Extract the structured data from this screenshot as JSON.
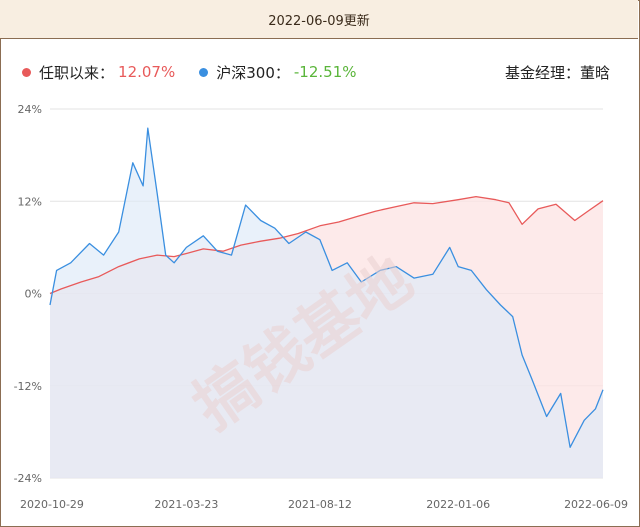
{
  "header": {
    "update_text": "2022-06-09更新"
  },
  "manager": {
    "label": "基金经理：",
    "name": "董晗"
  },
  "watermark": "搞钱基地",
  "colors": {
    "fund": "#e85a5a",
    "index": "#3a8fe0",
    "index_value": "#5ab53a",
    "fund_fill": "#fce3e3",
    "index_fill": "#dde9f8"
  },
  "chart_data": {
    "type": "area",
    "title": "",
    "xlabel": "",
    "ylabel": "",
    "ylim": [
      -24,
      24
    ],
    "y_ticks": [
      24,
      12,
      0,
      -12,
      -24
    ],
    "y_tick_labels": [
      "24%",
      "12%",
      "0%",
      "-12%",
      "-24%"
    ],
    "x_tick_labels": [
      "2020-10-29",
      "2021-03-23",
      "2021-08-12",
      "2022-01-06",
      "2022-06-09"
    ],
    "grid": true,
    "legend_position": "top-left",
    "series": [
      {
        "name": "任职以来",
        "latest_label": "12.07%",
        "x": [
          "2020-10-29",
          "2020-11-10",
          "2020-12-01",
          "2020-12-20",
          "2021-01-10",
          "2021-02-01",
          "2021-02-20",
          "2021-03-10",
          "2021-03-23",
          "2021-04-10",
          "2021-05-01",
          "2021-05-20",
          "2021-06-10",
          "2021-06-30",
          "2021-07-20",
          "2021-08-12",
          "2021-09-01",
          "2021-09-20",
          "2021-10-10",
          "2021-11-01",
          "2021-11-20",
          "2021-12-10",
          "2022-01-06",
          "2022-01-25",
          "2022-02-15",
          "2022-03-01",
          "2022-03-15",
          "2022-04-01",
          "2022-04-20",
          "2022-05-10",
          "2022-05-25",
          "2022-06-09"
        ],
        "values": [
          0,
          0.6,
          1.5,
          2.2,
          3.5,
          4.5,
          5.0,
          4.8,
          5.2,
          5.8,
          5.5,
          6.3,
          6.8,
          7.2,
          7.8,
          8.8,
          9.3,
          10.0,
          10.7,
          11.3,
          11.8,
          11.7,
          12.2,
          12.6,
          12.2,
          11.8,
          9.0,
          11.0,
          11.6,
          9.5,
          10.8,
          12.07
        ]
      },
      {
        "name": "沪深300",
        "latest_label": "-12.51%",
        "x": [
          "2020-10-29",
          "2020-11-05",
          "2020-11-20",
          "2020-12-10",
          "2020-12-25",
          "2021-01-10",
          "2021-01-25",
          "2021-02-05",
          "2021-02-10",
          "2021-02-20",
          "2021-03-01",
          "2021-03-10",
          "2021-03-23",
          "2021-04-10",
          "2021-04-25",
          "2021-05-10",
          "2021-05-25",
          "2021-06-10",
          "2021-06-25",
          "2021-07-10",
          "2021-07-28",
          "2021-08-12",
          "2021-08-25",
          "2021-09-10",
          "2021-09-25",
          "2021-10-15",
          "2021-11-01",
          "2021-11-20",
          "2021-12-10",
          "2021-12-28",
          "2022-01-06",
          "2022-01-20",
          "2022-02-05",
          "2022-02-20",
          "2022-03-05",
          "2022-03-15",
          "2022-03-25",
          "2022-04-10",
          "2022-04-25",
          "2022-05-05",
          "2022-05-20",
          "2022-06-01",
          "2022-06-09"
        ],
        "values": [
          -1.5,
          3.0,
          4.0,
          6.5,
          5.0,
          8.0,
          17.0,
          14.0,
          21.5,
          13.0,
          5.0,
          4.0,
          6.0,
          7.5,
          5.5,
          5.0,
          11.5,
          9.5,
          8.5,
          6.5,
          8.0,
          7.0,
          3.0,
          4.0,
          1.5,
          3.0,
          3.5,
          2.0,
          2.5,
          6.0,
          3.5,
          3.0,
          0.5,
          -1.5,
          -3.0,
          -8.0,
          -11.0,
          -16.0,
          -13.0,
          -20.0,
          -16.5,
          -15.0,
          -12.51
        ]
      }
    ]
  }
}
